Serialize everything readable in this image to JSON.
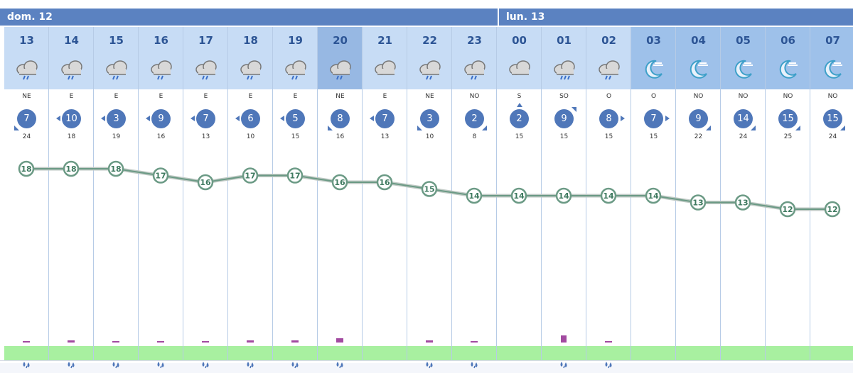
{
  "days": [
    {
      "label": "dom. 12"
    },
    {
      "label": "lun. 13"
    }
  ],
  "hours": [
    {
      "hour": "13",
      "icon": "rain-cloud-icon",
      "dir": "NE",
      "speed": "7",
      "gust": "24",
      "temp": 18,
      "rain": "0.1",
      "rain_value": 0.1
    },
    {
      "hour": "14",
      "icon": "rain-cloud-icon",
      "dir": "E",
      "speed": "10",
      "gust": "18",
      "temp": 18,
      "rain": "0.4",
      "rain_value": 0.4
    },
    {
      "hour": "15",
      "icon": "rain-cloud-icon",
      "dir": "E",
      "speed": "3",
      "gust": "19",
      "temp": 18,
      "rain": "0.3",
      "rain_value": 0.3
    },
    {
      "hour": "16",
      "icon": "rain-cloud-icon",
      "dir": "E",
      "speed": "9",
      "gust": "16",
      "temp": 17,
      "rain": "0.1",
      "rain_value": 0.1
    },
    {
      "hour": "17",
      "icon": "rain-cloud-icon",
      "dir": "E",
      "speed": "7",
      "gust": "13",
      "temp": 16,
      "rain": "0.3",
      "rain_value": 0.3
    },
    {
      "hour": "18",
      "icon": "rain-cloud-icon",
      "dir": "E",
      "speed": "6",
      "gust": "10",
      "temp": 17,
      "rain": "0.4",
      "rain_value": 0.4
    },
    {
      "hour": "19",
      "icon": "rain-cloud-icon",
      "dir": "E",
      "speed": "5",
      "gust": "15",
      "temp": 17,
      "rain": "0.4",
      "rain_value": 0.4
    },
    {
      "hour": "20",
      "icon": "rain-cloud-icon",
      "dir": "NE",
      "speed": "8",
      "gust": "16",
      "temp": 16,
      "rain": "1",
      "rain_value": 1
    },
    {
      "hour": "21",
      "icon": "cloud-icon",
      "dir": "E",
      "speed": "7",
      "gust": "13",
      "temp": 16,
      "rain": "",
      "rain_value": 0
    },
    {
      "hour": "22",
      "icon": "rain-cloud-icon",
      "dir": "NE",
      "speed": "3",
      "gust": "10",
      "temp": 15,
      "rain": "0.8",
      "rain_value": 0.8
    },
    {
      "hour": "23",
      "icon": "rain-cloud-icon",
      "dir": "NO",
      "speed": "2",
      "gust": "8",
      "temp": 14,
      "rain": "0.3",
      "rain_value": 0.3
    },
    {
      "hour": "00",
      "icon": "cloud-icon",
      "dir": "S",
      "speed": "2",
      "gust": "15",
      "temp": 14,
      "rain": "",
      "rain_value": 0
    },
    {
      "hour": "01",
      "icon": "heavy-rain-cloud-icon",
      "dir": "SO",
      "speed": "9",
      "gust": "15",
      "temp": 14,
      "rain": "2",
      "rain_value": 2
    },
    {
      "hour": "02",
      "icon": "rain-cloud-icon",
      "dir": "O",
      "speed": "8",
      "gust": "15",
      "temp": 14,
      "rain": "0.3",
      "rain_value": 0.3
    },
    {
      "hour": "03",
      "icon": "moon-icon",
      "dir": "O",
      "speed": "7",
      "gust": "15",
      "temp": 14,
      "rain": "",
      "rain_value": 0
    },
    {
      "hour": "04",
      "icon": "moon-icon",
      "dir": "NO",
      "speed": "9",
      "gust": "22",
      "temp": 13,
      "rain": "",
      "rain_value": 0
    },
    {
      "hour": "05",
      "icon": "moon-icon",
      "dir": "NO",
      "speed": "14",
      "gust": "24",
      "temp": 13,
      "rain": "",
      "rain_value": 0
    },
    {
      "hour": "06",
      "icon": "moon-icon",
      "dir": "NO",
      "speed": "15",
      "gust": "25",
      "temp": 12,
      "rain": "",
      "rain_value": 0
    },
    {
      "hour": "07",
      "icon": "moon-icon",
      "dir": "NO",
      "speed": "15",
      "gust": "24",
      "temp": 12,
      "rain": "",
      "rain_value": 0
    }
  ],
  "colors": {
    "header_bar": "#5b82c1",
    "wind_badge": "#4f77b9",
    "temp_line": "#6b9a85",
    "rain": "#a24aa0",
    "ground": "#a8f0a0"
  }
}
